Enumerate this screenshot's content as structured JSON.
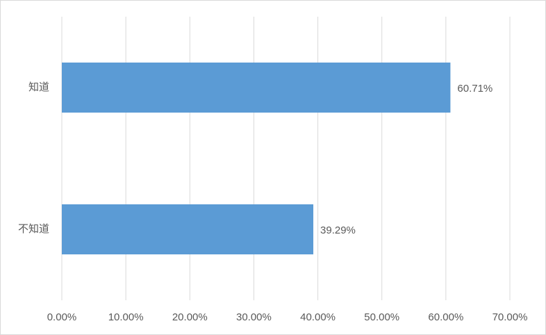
{
  "chart_data": {
    "type": "bar",
    "orientation": "horizontal",
    "categories": [
      "知道",
      "不知道"
    ],
    "values": [
      60.71,
      39.29
    ],
    "value_labels": [
      "60.71%",
      "39.29%"
    ],
    "color": "#5b9bd5",
    "xlim": [
      0,
      70
    ],
    "xticks": [
      {
        "value": 0,
        "label": "0.00%"
      },
      {
        "value": 10,
        "label": "10.00%"
      },
      {
        "value": 20,
        "label": "20.00%"
      },
      {
        "value": 30,
        "label": "30.00%"
      },
      {
        "value": 40,
        "label": "40.00%"
      },
      {
        "value": 50,
        "label": "50.00%"
      },
      {
        "value": 60,
        "label": "60.00%"
      },
      {
        "value": 70,
        "label": "70.00%"
      }
    ],
    "grid": true
  }
}
